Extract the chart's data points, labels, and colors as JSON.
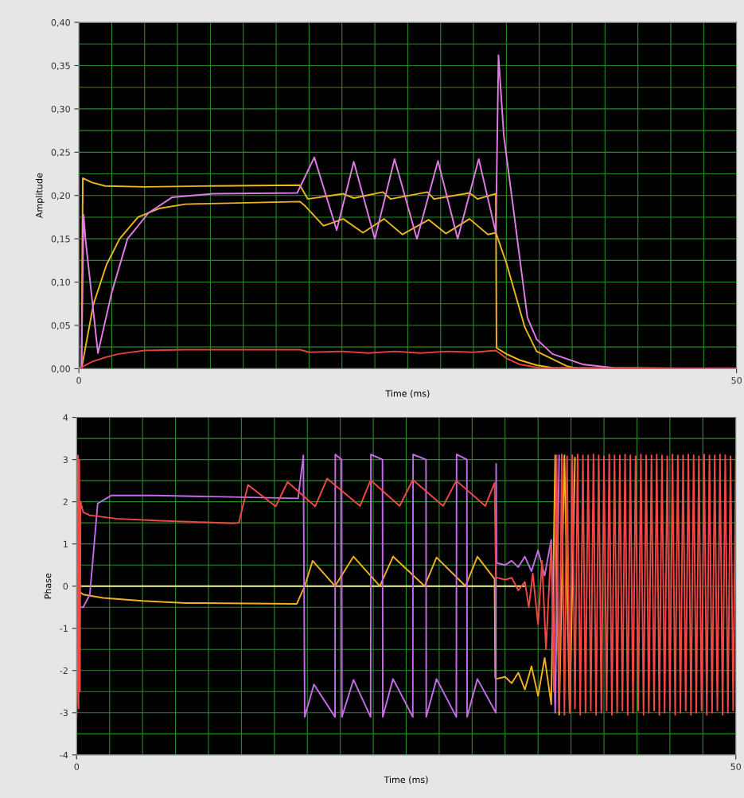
{
  "chart_data": [
    {
      "type": "line",
      "xlabel": "Time (ms)",
      "ylabel": "Amplitude",
      "xlim": [
        0,
        50
      ],
      "xticks": [
        0,
        {
          "value": 2.5,
          "label": null
        },
        {
          "value": 5,
          "label": null
        },
        {
          "value": 7.5,
          "label": null
        },
        {
          "value": 10,
          "label": null
        },
        {
          "value": 12.5,
          "label": null
        },
        {
          "value": 15,
          "label": null
        },
        {
          "value": 17.5,
          "label": null
        },
        {
          "value": 20,
          "label": null
        },
        {
          "value": 22.5,
          "label": null
        },
        {
          "value": 25,
          "label": null
        },
        {
          "value": 27.5,
          "label": null
        },
        {
          "value": 30,
          "label": null
        },
        {
          "value": 32.5,
          "label": null
        },
        {
          "value": 35,
          "label": null
        },
        {
          "value": 37.5,
          "label": null
        },
        {
          "value": 40,
          "label": null
        },
        {
          "value": 42.5,
          "label": null
        },
        {
          "value": 45,
          "label": null
        },
        {
          "value": 47.5,
          "label": null
        },
        50
      ],
      "ylim": [
        0,
        0.4
      ],
      "yticks": [
        {
          "value": 0,
          "label": "0,00"
        },
        {
          "value": 0.025,
          "label": null
        },
        {
          "value": 0.05,
          "label": "0,05"
        },
        {
          "value": 0.075,
          "label": null
        },
        {
          "value": 0.1,
          "label": "0,10"
        },
        {
          "value": 0.125,
          "label": null
        },
        {
          "value": 0.15,
          "label": "0,15"
        },
        {
          "value": 0.175,
          "label": null
        },
        {
          "value": 0.2,
          "label": "0,20"
        },
        {
          "value": 0.225,
          "label": null
        },
        {
          "value": 0.25,
          "label": "0,25"
        },
        {
          "value": 0.275,
          "label": null
        },
        {
          "value": 0.3,
          "label": "0,30"
        },
        {
          "value": 0.325,
          "label": null
        },
        {
          "value": 0.35,
          "label": "0,35"
        },
        {
          "value": 0.375,
          "label": null
        },
        {
          "value": 0.4,
          "label": "0,40"
        }
      ],
      "grid": true,
      "series": [
        {
          "color": "#f2b51c",
          "x": [
            0,
            0.2,
            0.3,
            1.0,
            2.0,
            5,
            10,
            16.8,
            17.4,
            20.1,
            20.9,
            23.1,
            23.7,
            26.5,
            27.0,
            29.7,
            30.3,
            31.7,
            31.75,
            32.5,
            33.5,
            34.8,
            36,
            50
          ],
          "values": [
            0,
            0,
            0.22,
            0.215,
            0.211,
            0.21,
            0.211,
            0.212,
            0.196,
            0.202,
            0.197,
            0.204,
            0.196,
            0.204,
            0.196,
            0.203,
            0.196,
            0.202,
            0.024,
            0.017,
            0.01,
            0.004,
            0.001,
            0
          ]
        },
        {
          "color": "#e8b520",
          "x": [
            0,
            0.24,
            1.1,
            2.1,
            3.1,
            4.5,
            6.1,
            8.1,
            16.8,
            17.2,
            18.6,
            20.1,
            21.6,
            23.2,
            24.6,
            26.6,
            27.9,
            29.7,
            31.1,
            31.7,
            32.5,
            33.9,
            34.8,
            37.1,
            38,
            50
          ],
          "values": [
            0,
            0.003,
            0.074,
            0.12,
            0.15,
            0.175,
            0.185,
            0.19,
            0.193,
            0.188,
            0.165,
            0.173,
            0.157,
            0.173,
            0.155,
            0.172,
            0.156,
            0.173,
            0.155,
            0.157,
            0.122,
            0.048,
            0.02,
            0.003,
            0,
            0
          ]
        },
        {
          "color": "#e27be6",
          "x": [
            0,
            0.2,
            0.36,
            0.5,
            1.45,
            2.5,
            3.7,
            5.3,
            7.1,
            10.2,
            16.6,
            17.9,
            19.6,
            20.9,
            22.5,
            24.0,
            25.7,
            27.3,
            28.8,
            30.4,
            31.7,
            31.9,
            32.3,
            33.2,
            34.1,
            34.8,
            36,
            38.3,
            40.6,
            50
          ],
          "values": [
            0,
            0,
            0.178,
            0.15,
            0.018,
            0.088,
            0.15,
            0.18,
            0.198,
            0.202,
            0.203,
            0.244,
            0.16,
            0.239,
            0.15,
            0.242,
            0.15,
            0.24,
            0.15,
            0.242,
            0.157,
            0.362,
            0.27,
            0.165,
            0.059,
            0.034,
            0.017,
            0.005,
            0.001,
            0
          ]
        },
        {
          "color": "#e0413c",
          "x": [
            0,
            1,
            2,
            3,
            5,
            8,
            16.8,
            17.5,
            20,
            22,
            24,
            26,
            28,
            30,
            31.7,
            32.5,
            33.5,
            35,
            50
          ],
          "values": [
            0,
            0.008,
            0.013,
            0.017,
            0.021,
            0.022,
            0.022,
            0.019,
            0.02,
            0.018,
            0.02,
            0.018,
            0.02,
            0.019,
            0.021,
            0.012,
            0.005,
            0.001,
            0
          ]
        }
      ]
    },
    {
      "type": "line",
      "xlabel": "Time (ms)",
      "ylabel": "Phase",
      "xlim": [
        0,
        50
      ],
      "xticks": [
        0,
        {
          "value": 2.5,
          "label": null
        },
        {
          "value": 5,
          "label": null
        },
        {
          "value": 7.5,
          "label": null
        },
        {
          "value": 10,
          "label": null
        },
        {
          "value": 12.5,
          "label": null
        },
        {
          "value": 15,
          "label": null
        },
        {
          "value": 17.5,
          "label": null
        },
        {
          "value": 20,
          "label": null
        },
        {
          "value": 22.5,
          "label": null
        },
        {
          "value": 25,
          "label": null
        },
        {
          "value": 27.5,
          "label": null
        },
        {
          "value": 30,
          "label": null
        },
        {
          "value": 32.5,
          "label": null
        },
        {
          "value": 35,
          "label": null
        },
        {
          "value": 37.5,
          "label": null
        },
        {
          "value": 40,
          "label": null
        },
        {
          "value": 42.5,
          "label": null
        },
        {
          "value": 45,
          "label": null
        },
        {
          "value": 47.5,
          "label": null
        },
        50
      ],
      "ylim": [
        -4,
        4
      ],
      "yticks": [
        -4,
        {
          "value": -3.5,
          "label": null
        },
        -3,
        {
          "value": -2.5,
          "label": null
        },
        -2,
        {
          "value": -1.5,
          "label": null
        },
        -1,
        {
          "value": -0.5,
          "label": null
        },
        0,
        {
          "value": 0.5,
          "label": null
        },
        1,
        {
          "value": 1.5,
          "label": null
        },
        2,
        {
          "value": 2.5,
          "label": null
        },
        3,
        {
          "value": 3.5,
          "label": null
        },
        4
      ],
      "grid": true,
      "series": [
        {
          "color": "#f0eea0",
          "x": [
            0,
            34
          ],
          "values": [
            0,
            0
          ]
        },
        {
          "color": "#f0b020",
          "x": [
            0,
            0.1,
            0.2,
            0.3,
            0.5,
            2,
            5,
            8.3,
            16.7,
            17.3,
            17.9,
            19.6,
            21.0,
            23.0,
            24.0,
            26.4,
            27.3,
            29.5,
            30.4,
            31.7,
            31.75,
            31.8,
            32.5,
            33,
            33.5,
            34,
            34.5,
            35,
            35.5,
            36,
            36.3,
            36.6,
            37,
            37.4,
            37.8
          ],
          "values": [
            -2.8,
            0.2,
            -0.3,
            -0.15,
            -0.2,
            -0.28,
            -0.35,
            -0.4,
            -0.42,
            0,
            0.6,
            0,
            0.7,
            0,
            0.7,
            0,
            0.68,
            0,
            0.7,
            0.17,
            -2.16,
            -2.2,
            -2.15,
            -2.3,
            -2.05,
            -2.45,
            -1.9,
            -2.6,
            -1.7,
            -2.8,
            3.1,
            -3.05,
            3.1,
            -3.0,
            3.05
          ]
        },
        {
          "color": "#c46be8",
          "x": [
            0,
            0.5,
            1.0,
            1.6,
            2.65,
            6,
            16.8,
            17.2,
            17.3,
            18.0,
            19.6,
            19.62,
            20.1,
            20.12,
            21.0,
            22.3,
            22.32,
            23.2,
            23.22,
            24.0,
            25.5,
            25.52,
            26.5,
            26.52,
            27.3,
            28.8,
            28.82,
            29.6,
            29.62,
            30.4,
            31.8,
            31.82,
            31.85,
            32.5,
            33,
            33.5,
            34,
            34.5,
            35,
            35.5,
            36,
            36.3,
            36.6
          ],
          "values": [
            -0.5,
            -0.5,
            -0.2,
            1.96,
            2.15,
            2.15,
            2.08,
            3.1,
            -3.1,
            -2.33,
            -3.1,
            3.12,
            3.0,
            -3.1,
            -2.22,
            -3.1,
            3.12,
            3.0,
            -3.1,
            -2.2,
            -3.1,
            3.12,
            3.0,
            -3.1,
            -2.2,
            -3.1,
            3.12,
            3.0,
            -3.1,
            -2.2,
            -3.0,
            2.9,
            0.55,
            0.5,
            0.6,
            0.45,
            0.7,
            0.35,
            0.85,
            0.25,
            1.1,
            -3.0,
            3.1
          ]
        },
        {
          "color": "#f04848",
          "x": [
            0,
            0.1,
            0.15,
            0.2,
            0.25,
            0.3,
            0.5,
            1,
            3,
            6.3,
            11.9,
            12.3,
            13.0,
            15.1,
            16.0,
            18.1,
            19.0,
            21.5,
            22.3,
            24.5,
            25.5,
            27.8,
            28.8,
            31.0,
            31.7,
            31.8,
            32.5,
            33.0,
            33.5,
            34.0,
            34.3,
            34.6,
            35.0,
            35.3,
            35.6,
            36.0,
            36.2,
            36.4,
            36.6,
            36.8,
            37.0,
            37.2,
            37.4,
            37.6,
            37.8,
            38.0,
            38.2,
            38.4,
            38.6,
            38.8,
            39.0,
            39.2,
            39.4,
            39.6,
            39.8,
            40.0,
            40.2,
            40.4,
            40.6,
            40.8,
            41.0,
            41.2,
            41.4,
            41.6,
            41.8,
            42.0,
            42.2,
            42.4,
            42.6,
            42.8,
            43.0,
            43.2,
            43.4,
            43.6,
            43.8,
            44.0,
            44.2,
            44.4,
            44.6,
            44.8,
            45.0,
            45.2,
            45.4,
            45.6,
            45.8,
            46.0,
            46.2,
            46.4,
            46.6,
            46.8,
            47.0,
            47.2,
            47.4,
            47.6,
            47.8,
            48.0,
            48.2,
            48.4,
            48.6,
            48.8,
            49.0,
            49.2,
            49.4,
            49.6,
            49.8,
            50.0
          ],
          "values": [
            -3.1,
            3.1,
            -2.9,
            3.0,
            -2.5,
            2.0,
            1.75,
            1.68,
            1.6,
            1.55,
            1.49,
            1.5,
            2.4,
            1.89,
            2.47,
            1.89,
            2.55,
            1.9,
            2.51,
            1.9,
            2.52,
            1.9,
            2.5,
            1.9,
            2.45,
            0.21,
            0.15,
            0.2,
            -0.1,
            0.1,
            -0.5,
            0.3,
            -0.9,
            0.6,
            -1.5,
            1.0,
            -2.5,
            3.1,
            -2.95,
            3.12,
            -3.05,
            3.08,
            -3.0,
            3.1,
            -2.9,
            3.12,
            -3.05,
            3.1,
            -3.0,
            3.1,
            -2.95,
            3.12,
            -3.05,
            3.1,
            -3.0,
            3.08,
            -2.95,
            3.12,
            -3.05,
            3.1,
            -3.0,
            3.1,
            -2.95,
            3.12,
            -3.05,
            3.1,
            -3.0,
            3.08,
            -2.95,
            3.12,
            -3.05,
            3.1,
            -3.0,
            3.1,
            -2.95,
            3.12,
            -3.05,
            3.1,
            -3.0,
            3.08,
            -2.95,
            3.12,
            -3.05,
            3.1,
            -3.0,
            3.1,
            -2.95,
            3.12,
            -3.05,
            3.1,
            -3.0,
            3.08,
            -2.95,
            3.12,
            -3.05,
            3.1,
            -3.0,
            3.1,
            -2.95,
            3.12,
            -3.05,
            3.1,
            -3.0,
            3.08,
            -2.95,
            3.12
          ]
        }
      ]
    }
  ]
}
